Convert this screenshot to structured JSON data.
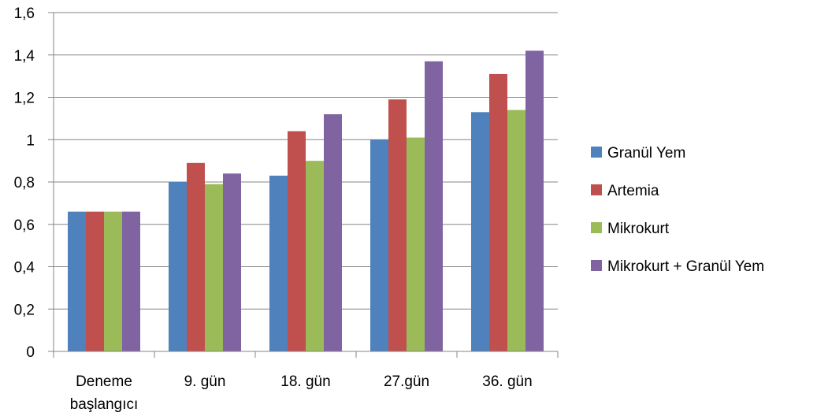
{
  "chart_data": {
    "type": "bar",
    "categories": [
      [
        "Deneme",
        "başlangıcı"
      ],
      [
        "9. gün"
      ],
      [
        "18. gün"
      ],
      [
        "27.gün"
      ],
      [
        "36. gün"
      ]
    ],
    "series": [
      {
        "name": "Granül Yem",
        "color": "#4F81BD",
        "values": [
          0.66,
          0.8,
          0.83,
          1.0,
          1.13
        ]
      },
      {
        "name": "Artemia",
        "color": "#C0504D",
        "values": [
          0.66,
          0.89,
          1.04,
          1.19,
          1.31
        ]
      },
      {
        "name": "Mikrokurt",
        "color": "#9BBB59",
        "values": [
          0.66,
          0.79,
          0.9,
          1.01,
          1.14
        ]
      },
      {
        "name": "Mikrokurt + Granül Yem",
        "color": "#8064A2",
        "values": [
          0.66,
          0.84,
          1.12,
          1.37,
          1.42
        ]
      }
    ],
    "ylim": [
      0,
      1.6
    ],
    "yticks": [
      "0",
      "0,2",
      "0,4",
      "0,6",
      "0,8",
      "1",
      "1,2",
      "1,4",
      "1,6"
    ],
    "grid": true,
    "legend_position": "right"
  }
}
